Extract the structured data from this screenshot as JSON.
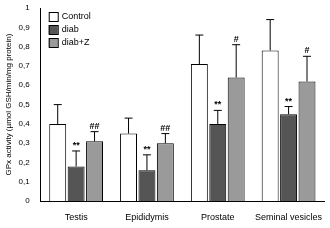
{
  "chart_data": {
    "type": "bar",
    "y_label": "GPx activity (µmol GSH/min/mg protein)",
    "categories": [
      "Testis",
      "Epididymis",
      "Prostate",
      "Seminal vesicles"
    ],
    "series": [
      {
        "name": "Control",
        "color": "#ffffff",
        "values": [
          0.4,
          0.35,
          0.71,
          0.78
        ],
        "errors": [
          0.1,
          0.08,
          0.15,
          0.16
        ]
      },
      {
        "name": "diab",
        "color": "#555555",
        "values": [
          0.18,
          0.16,
          0.4,
          0.45
        ],
        "errors": [
          0.08,
          0.08,
          0.07,
          0.04
        ],
        "annotations": [
          "**",
          "**",
          "**",
          "**"
        ]
      },
      {
        "name": "diab+Z",
        "color": "#9a9a9a",
        "values": [
          0.31,
          0.3,
          0.64,
          0.62
        ],
        "errors": [
          0.05,
          0.05,
          0.17,
          0.13
        ],
        "annotations": [
          "##",
          "##",
          "#",
          "#"
        ]
      }
    ],
    "ylim": [
      0,
      1
    ],
    "yticks": [
      0,
      {
        "value": 0.1,
        "label": "0,1"
      },
      {
        "value": 0.2,
        "label": "0,2"
      },
      {
        "value": 0.3,
        "label": "0,3"
      },
      {
        "value": 0.4,
        "label": "0,4"
      },
      {
        "value": 0.5,
        "label": "0,5"
      },
      {
        "value": 0.6,
        "label": "0,6"
      },
      {
        "value": 0.7,
        "label": "0,7"
      },
      {
        "value": 0.8,
        "label": "0,8"
      },
      {
        "value": 0.9,
        "label": "0,9"
      },
      1
    ],
    "grid": false,
    "legend": "top-left"
  }
}
